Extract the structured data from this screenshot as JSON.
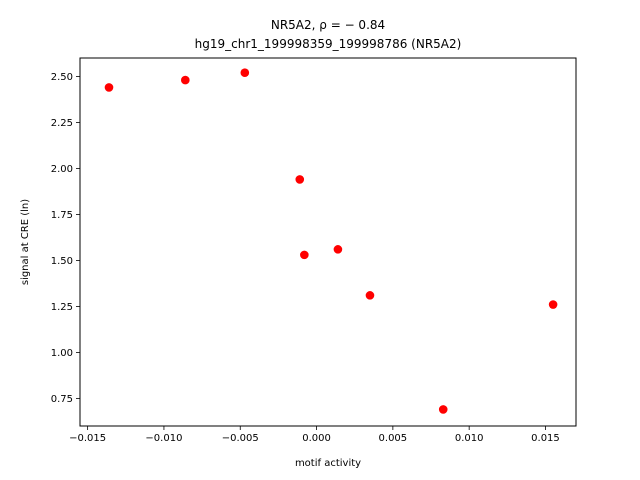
{
  "chart_data": {
    "type": "scatter",
    "title_line1": "NR5A2, ρ = − 0.84",
    "title_line2": "hg19_chr1_199998359_199998786 (NR5A2)",
    "xlabel": "motif activity",
    "ylabel": "signal at CRE (ln)",
    "xlim": [
      -0.0155,
      0.017
    ],
    "ylim": [
      0.6,
      2.6
    ],
    "grid": false,
    "marker_color": "#ff0000",
    "x_ticks": [
      {
        "value": -0.015,
        "label": "−0.015"
      },
      {
        "value": -0.01,
        "label": "−0.010"
      },
      {
        "value": -0.005,
        "label": "−0.005"
      },
      {
        "value": 0.0,
        "label": "0.000"
      },
      {
        "value": 0.005,
        "label": "0.005"
      },
      {
        "value": 0.01,
        "label": "0.010"
      },
      {
        "value": 0.015,
        "label": "0.015"
      }
    ],
    "y_ticks": [
      {
        "value": 0.75,
        "label": "0.75"
      },
      {
        "value": 1.0,
        "label": "1.00"
      },
      {
        "value": 1.25,
        "label": "1.25"
      },
      {
        "value": 1.5,
        "label": "1.50"
      },
      {
        "value": 1.75,
        "label": "1.75"
      },
      {
        "value": 2.0,
        "label": "2.00"
      },
      {
        "value": 2.25,
        "label": "2.25"
      },
      {
        "value": 2.5,
        "label": "2.50"
      }
    ],
    "points": [
      {
        "x": -0.0136,
        "y": 2.44
      },
      {
        "x": -0.0086,
        "y": 2.48
      },
      {
        "x": -0.0047,
        "y": 2.52
      },
      {
        "x": -0.0011,
        "y": 1.94
      },
      {
        "x": -0.0008,
        "y": 1.53
      },
      {
        "x": 0.0014,
        "y": 1.56
      },
      {
        "x": 0.0035,
        "y": 1.31
      },
      {
        "x": 0.0083,
        "y": 0.69
      },
      {
        "x": 0.0155,
        "y": 1.26
      }
    ]
  }
}
